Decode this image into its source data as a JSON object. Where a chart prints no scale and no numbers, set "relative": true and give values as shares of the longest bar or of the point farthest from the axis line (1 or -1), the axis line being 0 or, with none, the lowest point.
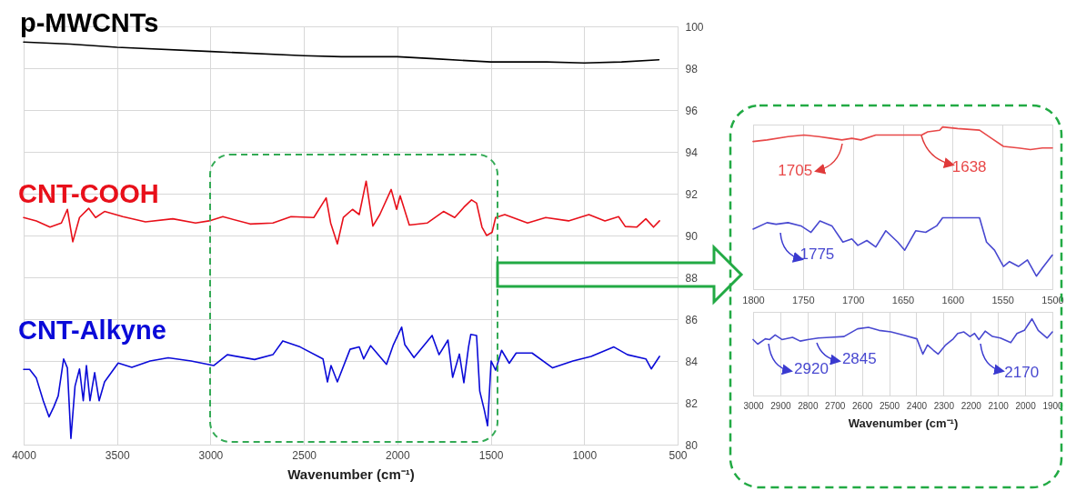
{
  "chart_data": [
    {
      "type": "line",
      "xlabel": "Wavenumber (cm⁻¹)",
      "xlim": [
        4000,
        500
      ],
      "xticks": [
        4000,
        3500,
        3000,
        2500,
        2000,
        1500,
        1000,
        500
      ],
      "ylim": [
        80,
        100
      ],
      "yticks": [
        80,
        82,
        84,
        86,
        88,
        90,
        92,
        94,
        96,
        98,
        100
      ],
      "grid": true,
      "series": [
        {
          "name": "p-MWCNTs",
          "color": "#000000",
          "x": [
            4000,
            3750,
            3500,
            3000,
            2500,
            2300,
            2000,
            1800,
            1500,
            1200,
            1000,
            800,
            600
          ],
          "values": [
            99.25,
            99.15,
            99.0,
            98.8,
            98.6,
            98.55,
            98.55,
            98.45,
            98.3,
            98.3,
            98.25,
            98.3,
            98.4
          ]
        },
        {
          "name": "CNT-COOH",
          "color": "#e8101a",
          "x": [
            4000,
            3932,
            3859,
            3798,
            3766,
            3737,
            3701,
            3652,
            3615,
            3567,
            3469,
            3348,
            3202,
            3080,
            3007,
            2934,
            2788,
            2666,
            2569,
            2447,
            2381,
            2357,
            2321,
            2289,
            2240,
            2204,
            2167,
            2131,
            2094,
            2033,
            2004,
            1985,
            1936,
            1839,
            1753,
            1693,
            1644,
            1603,
            1576,
            1547,
            1522,
            1493,
            1474,
            1425,
            1303,
            1206,
            1084,
            975,
            889,
            816,
            780,
            719,
            670,
            629,
            597
          ],
          "values": [
            90.86,
            90.7,
            90.4,
            90.6,
            91.25,
            89.7,
            90.86,
            91.3,
            90.86,
            91.15,
            90.9,
            90.65,
            90.8,
            90.6,
            90.7,
            90.9,
            90.55,
            90.6,
            90.9,
            90.86,
            91.8,
            90.6,
            89.6,
            90.86,
            91.25,
            91.0,
            92.6,
            90.45,
            91.0,
            92.2,
            91.25,
            91.9,
            90.5,
            90.6,
            91.15,
            90.86,
            91.35,
            91.7,
            91.55,
            90.4,
            90.0,
            90.15,
            90.86,
            91.0,
            90.6,
            90.86,
            90.7,
            91.0,
            90.7,
            90.9,
            90.43,
            90.4,
            90.8,
            90.4,
            90.7
          ]
        },
        {
          "name": "CNT-Alkyne",
          "color": "#0a0ad8",
          "x": [
            4000,
            3968,
            3932,
            3895,
            3864,
            3839,
            3815,
            3786,
            3766,
            3747,
            3725,
            3701,
            3681,
            3664,
            3645,
            3620,
            3596,
            3567,
            3494,
            3421,
            3323,
            3226,
            3104,
            2983,
            2910,
            2764,
            2666,
            2613,
            2520,
            2398,
            2374,
            2355,
            2321,
            2253,
            2204,
            2180,
            2143,
            2058,
            2021,
            1977,
            1960,
            1911,
            1814,
            1777,
            1729,
            1704,
            1668,
            1644,
            1619,
            1607,
            1576,
            1559,
            1535,
            1517,
            1498,
            1474,
            1442,
            1401,
            1364,
            1279,
            1169,
            1060,
            963,
            841,
            768,
            670,
            641,
            597
          ],
          "values": [
            83.6,
            83.6,
            83.18,
            82.1,
            81.33,
            81.8,
            82.33,
            84.1,
            83.67,
            80.3,
            82.8,
            83.62,
            82.1,
            83.78,
            82.1,
            83.44,
            82.1,
            83.0,
            83.9,
            83.7,
            84.0,
            84.15,
            84.0,
            83.78,
            84.3,
            84.07,
            84.3,
            84.96,
            84.67,
            84.1,
            83.0,
            83.78,
            83.0,
            84.56,
            84.67,
            84.1,
            84.73,
            83.84,
            84.78,
            85.62,
            84.78,
            84.16,
            85.22,
            84.3,
            85.0,
            83.22,
            84.33,
            82.96,
            84.67,
            85.27,
            85.22,
            82.56,
            81.67,
            80.9,
            84.0,
            83.56,
            84.51,
            83.89,
            84.38,
            84.38,
            83.67,
            84.0,
            84.22,
            84.67,
            84.3,
            84.1,
            83.62,
            84.22
          ]
        }
      ]
    },
    {
      "type": "line",
      "relative": true,
      "xlim": [
        1800,
        1500
      ],
      "xticks": [
        1800,
        1750,
        1700,
        1650,
        1600,
        1550,
        1500
      ],
      "grid": true,
      "tick_labels": "x",
      "annotations": [
        {
          "text": "1705",
          "x": 1705,
          "y": 0.92
        },
        {
          "text": "1638",
          "x": 1638,
          "y": 0.95
        },
        {
          "text": "1775",
          "x": 1775,
          "y": 0.4
        }
      ],
      "series": [
        {
          "color": "#e84848",
          "x": [
            1800,
            1786,
            1765,
            1749,
            1734,
            1722,
            1711,
            1701,
            1692,
            1677,
            1661,
            1643,
            1631,
            1625,
            1613,
            1610,
            1595,
            1573,
            1561,
            1549,
            1534,
            1522,
            1510,
            1500
          ],
          "values": [
            0.91,
            0.92,
            0.94,
            0.95,
            0.94,
            0.93,
            0.92,
            0.93,
            0.92,
            0.95,
            0.95,
            0.95,
            0.95,
            0.97,
            0.98,
            1.0,
            0.99,
            0.98,
            0.93,
            0.88,
            0.87,
            0.86,
            0.87,
            0.87
          ]
        },
        {
          "color": "#4848d0",
          "x": [
            1800,
            1786,
            1777,
            1765,
            1752,
            1742,
            1733,
            1721,
            1710,
            1701,
            1695,
            1686,
            1677,
            1667,
            1655,
            1648,
            1637,
            1627,
            1616,
            1610,
            1573,
            1566,
            1558,
            1549,
            1543,
            1534,
            1525,
            1516,
            1510,
            1500
          ],
          "values": [
            0.37,
            0.41,
            0.4,
            0.41,
            0.39,
            0.35,
            0.42,
            0.39,
            0.29,
            0.31,
            0.27,
            0.3,
            0.26,
            0.36,
            0.29,
            0.24,
            0.36,
            0.35,
            0.39,
            0.44,
            0.44,
            0.29,
            0.24,
            0.14,
            0.17,
            0.14,
            0.18,
            0.08,
            0.13,
            0.21
          ]
        }
      ]
    },
    {
      "type": "line",
      "relative": true,
      "xlabel": "Wavenumber (cm⁻¹)",
      "xlim": [
        3000,
        1900
      ],
      "xticks": [
        3000,
        2900,
        2800,
        2700,
        2600,
        2500,
        2400,
        2300,
        2200,
        2100,
        2000,
        1900
      ],
      "grid": true,
      "tick_labels": "x",
      "annotations": [
        {
          "text": "2920",
          "x": 2920,
          "y": 0.79
        },
        {
          "text": "2845",
          "x": 2770,
          "y": 0.76
        },
        {
          "text": "2170",
          "x": 2170,
          "y": 0.73
        }
      ],
      "series": [
        {
          "color": "#4848d0",
          "x": [
            3000,
            2983,
            2955,
            2939,
            2919,
            2894,
            2855,
            2827,
            2799,
            2760,
            2716,
            2666,
            2616,
            2576,
            2537,
            2493,
            2448,
            2398,
            2376,
            2359,
            2337,
            2320,
            2292,
            2264,
            2248,
            2225,
            2203,
            2186,
            2170,
            2147,
            2120,
            2091,
            2053,
            2030,
            2003,
            1975,
            1952,
            1919,
            1900
          ],
          "values": [
            0.73,
            0.67,
            0.74,
            0.73,
            0.79,
            0.73,
            0.76,
            0.71,
            0.73,
            0.75,
            0.76,
            0.77,
            0.87,
            0.89,
            0.85,
            0.83,
            0.79,
            0.74,
            0.54,
            0.66,
            0.59,
            0.54,
            0.66,
            0.74,
            0.81,
            0.83,
            0.77,
            0.81,
            0.73,
            0.84,
            0.77,
            0.75,
            0.69,
            0.81,
            0.85,
            1.0,
            0.85,
            0.75,
            0.83
          ]
        }
      ]
    }
  ]
}
